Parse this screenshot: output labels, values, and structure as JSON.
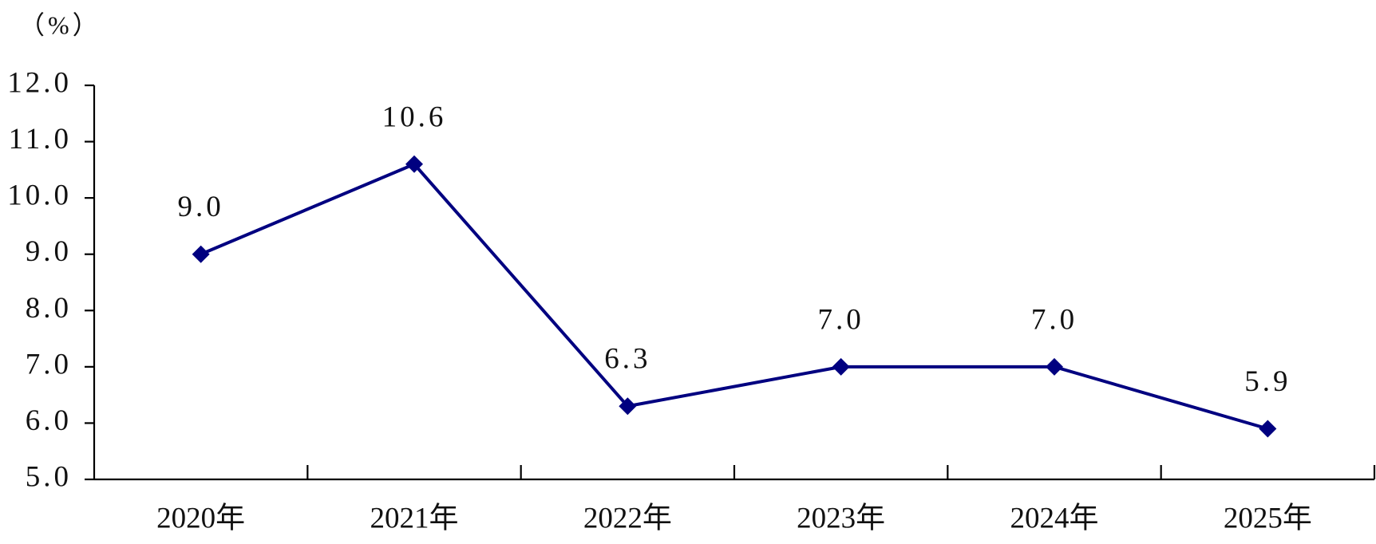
{
  "chart_data": {
    "type": "line",
    "unit_label": "（%）",
    "categories": [
      "2020年",
      "2021年",
      "2022年",
      "2023年",
      "2024年",
      "2025年"
    ],
    "series": [
      {
        "color": "#000080",
        "values": [
          9.0,
          10.6,
          6.3,
          7.0,
          7.0,
          5.9
        ],
        "value_labels": [
          "9.0",
          "10.6",
          "6.3",
          "7.0",
          "7.0",
          "5.9"
        ]
      }
    ],
    "ylim": [
      5,
      12
    ],
    "yticks": [
      {
        "value": 5,
        "label": "5.0"
      },
      {
        "value": 6,
        "label": "6.0"
      },
      {
        "value": 7,
        "label": "7.0"
      },
      {
        "value": 8,
        "label": "8.0"
      },
      {
        "value": 9,
        "label": "9.0"
      },
      {
        "value": 10,
        "label": "10.0"
      },
      {
        "value": 11,
        "label": "11.0"
      },
      {
        "value": 12,
        "label": "12.0"
      }
    ],
    "grid": false
  }
}
